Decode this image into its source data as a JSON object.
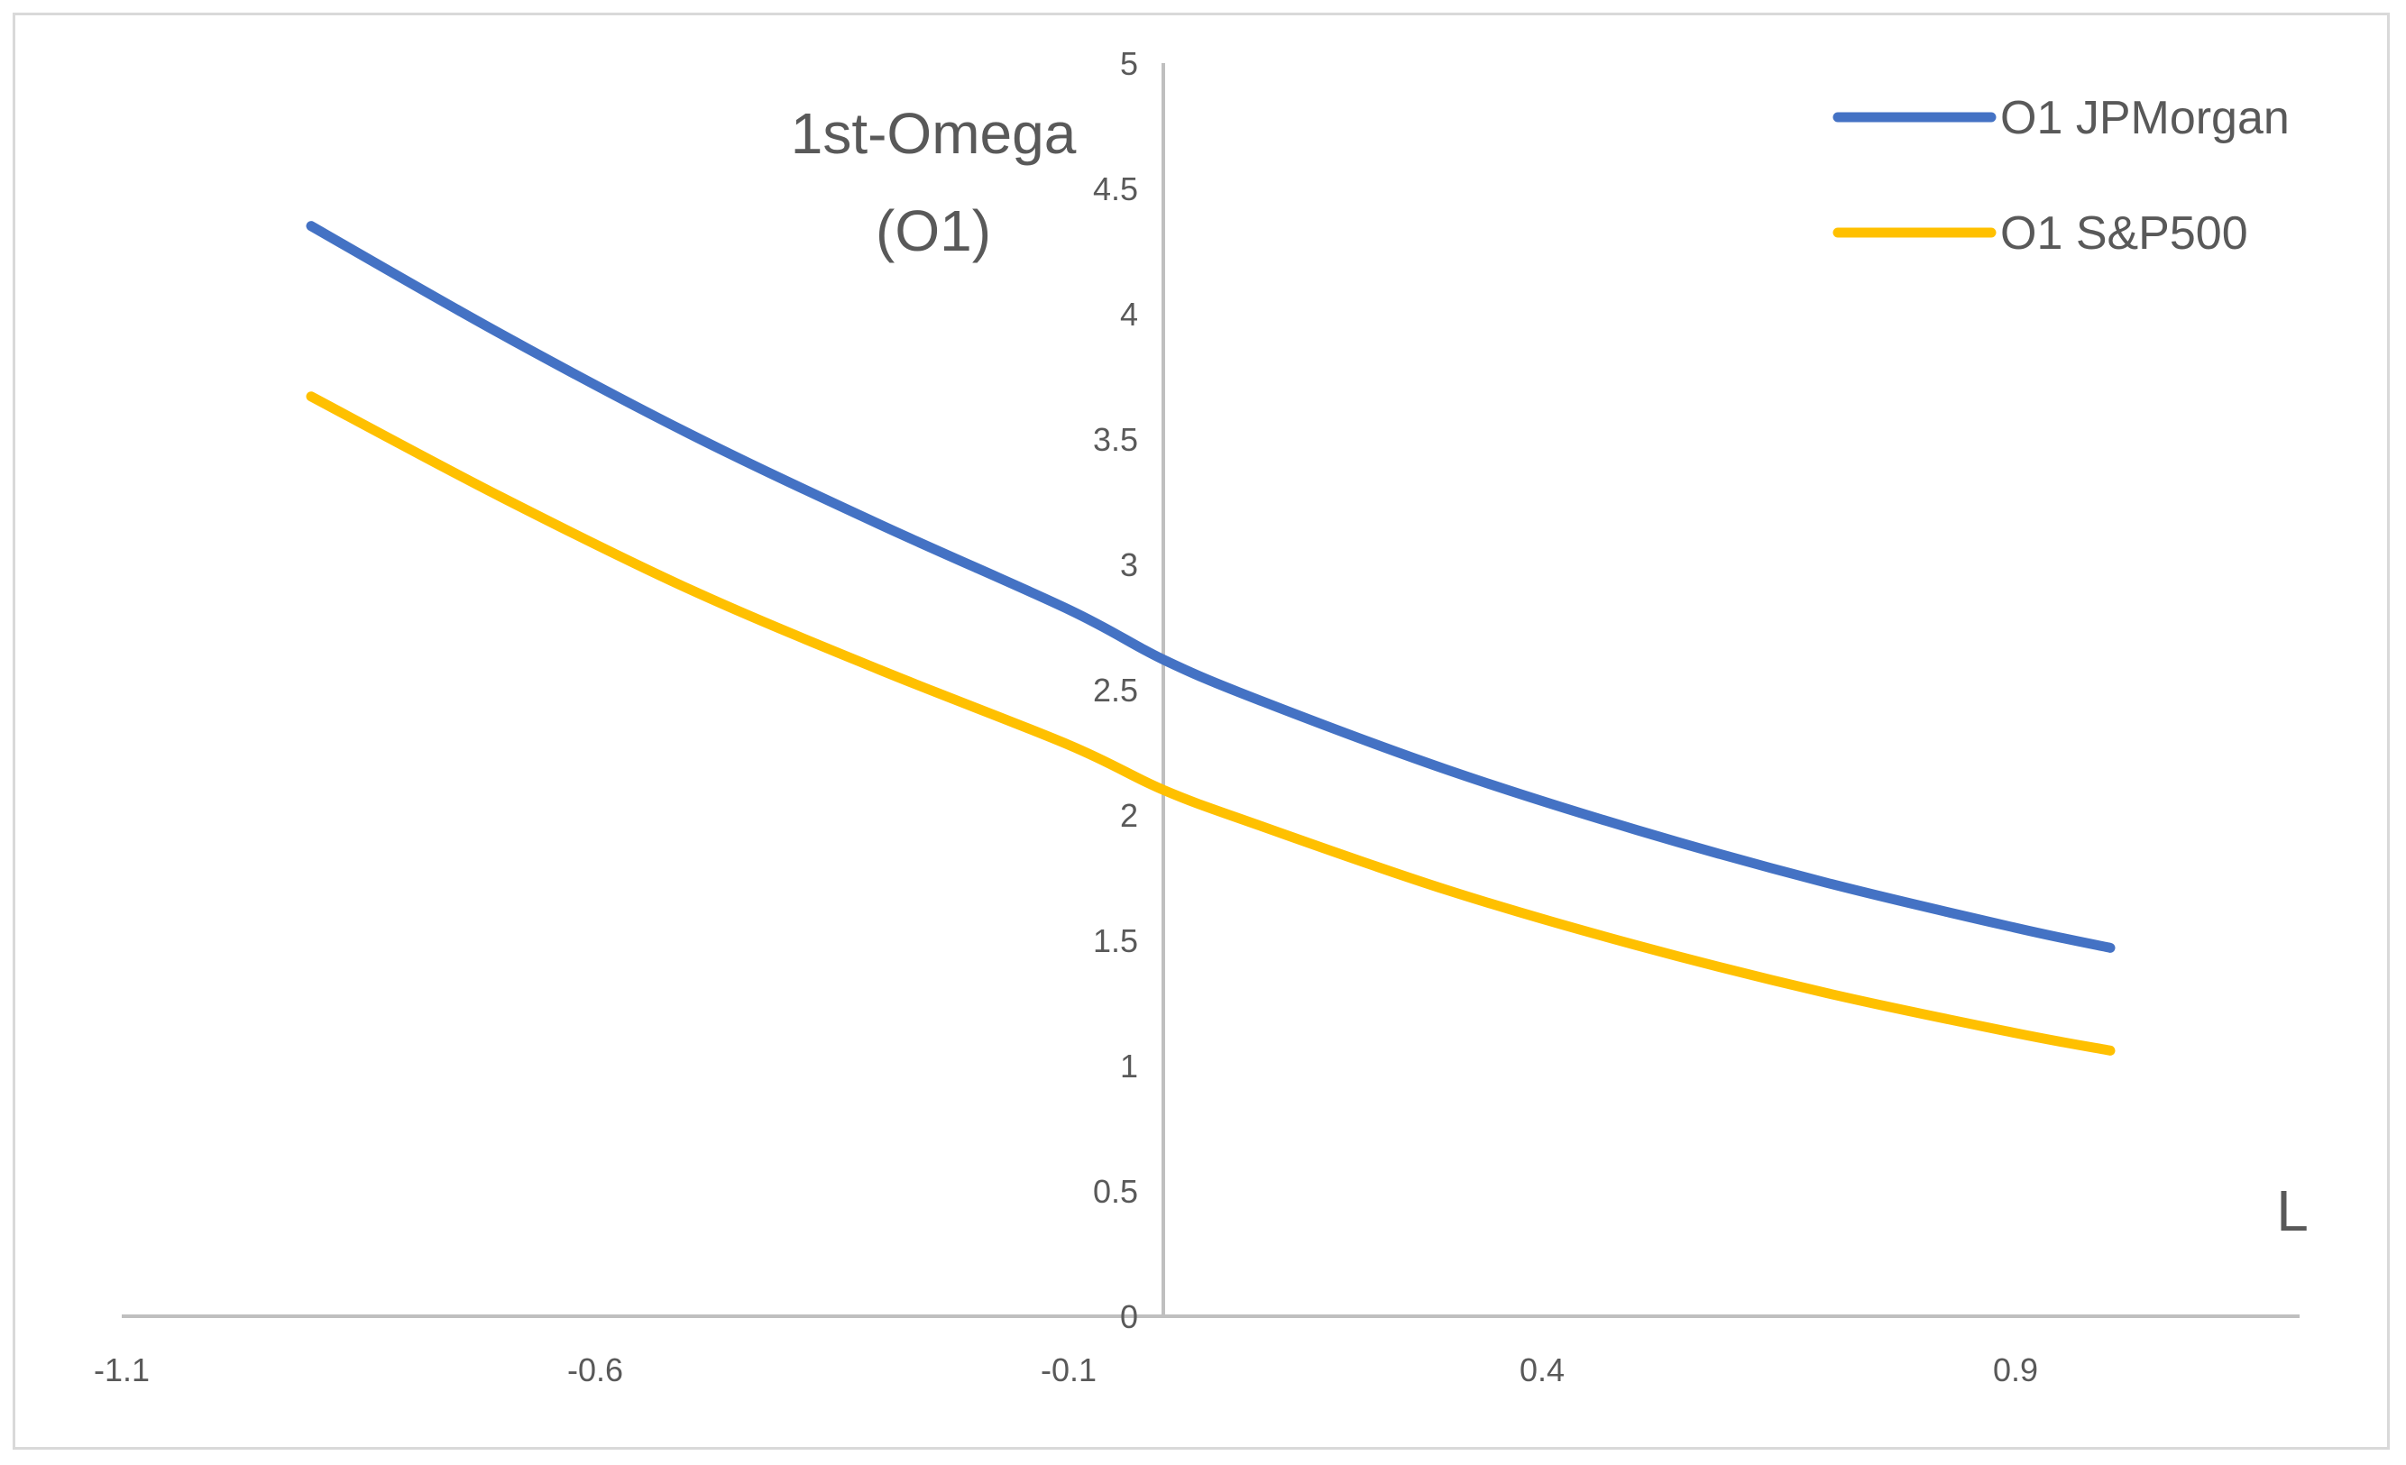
{
  "chart_data": {
    "type": "line",
    "title": "",
    "ylabel_lines": [
      "1st-Omega",
      "(O1)"
    ],
    "xlabel": "L",
    "xlim": [
      -1.1,
      1.2
    ],
    "ylim": [
      0,
      5
    ],
    "x_ticks": [
      -1.1,
      -0.6,
      -0.1,
      0.4,
      0.9
    ],
    "x_tick_labels": [
      "-1.1",
      "-0.6",
      "-0.1",
      "0.4",
      "0.9"
    ],
    "y_ticks": [
      0,
      0.5,
      1,
      1.5,
      2,
      2.5,
      3,
      3.5,
      4,
      4.5,
      5
    ],
    "y_tick_labels": [
      "0",
      "0.5",
      "1",
      "1.5",
      "2",
      "2.5",
      "3",
      "3.5",
      "4",
      "4.5",
      "5"
    ],
    "grid": false,
    "legend_position": "top-right",
    "x": [
      -0.9,
      -0.7,
      -0.5,
      -0.3,
      -0.1,
      0.0,
      0.1,
      0.3,
      0.5,
      0.7,
      0.9,
      1.0
    ],
    "series": [
      {
        "name": "O1 JPMorgan",
        "color": "#4472c4",
        "values": [
          4.35,
          3.92,
          3.52,
          3.16,
          2.82,
          2.62,
          2.46,
          2.18,
          1.94,
          1.73,
          1.55,
          1.47
        ]
      },
      {
        "name": "O1 S&P500",
        "color": "#ffc000",
        "values": [
          3.67,
          3.27,
          2.9,
          2.58,
          2.28,
          2.1,
          1.96,
          1.7,
          1.48,
          1.29,
          1.13,
          1.06
        ]
      }
    ]
  }
}
